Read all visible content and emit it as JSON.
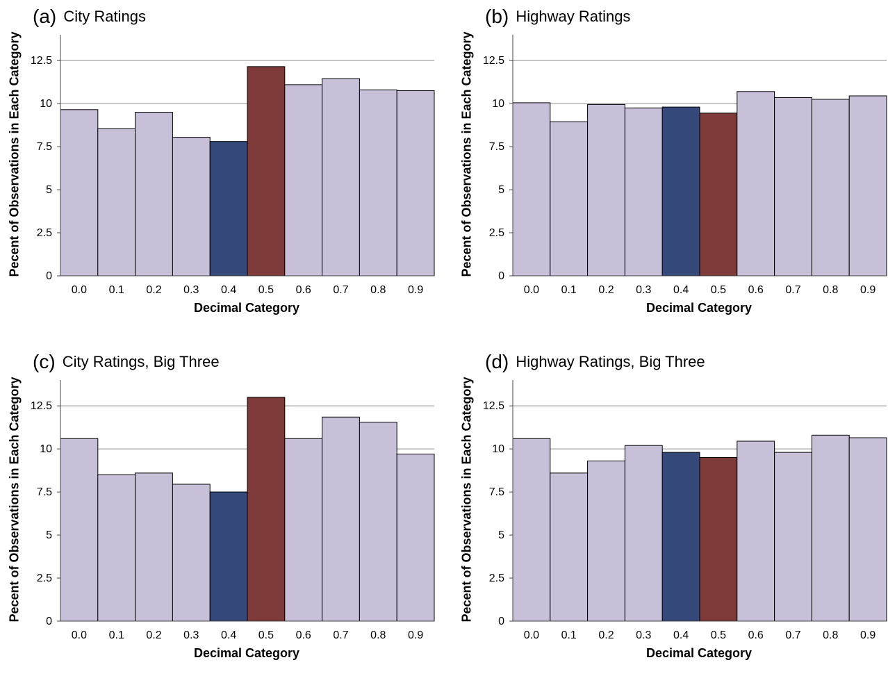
{
  "chart_data": [
    {
      "type": "bar",
      "panel": "(a)",
      "title": "City Ratings",
      "xlabel": "Decimal Category",
      "ylabel": "Pecent of Observations in Each Category",
      "categories": [
        "0.0",
        "0.1",
        "0.2",
        "0.3",
        "0.4",
        "0.5",
        "0.6",
        "0.7",
        "0.8",
        "0.9"
      ],
      "values": [
        9.65,
        8.55,
        9.5,
        8.05,
        7.8,
        12.15,
        11.1,
        11.45,
        10.8,
        10.75
      ],
      "ylim": [
        0,
        14
      ],
      "yticks": [
        "0",
        "2.5",
        "5",
        "7.5",
        "10",
        "12.5"
      ],
      "ytick_values": [
        0,
        2.5,
        5,
        7.5,
        10,
        12.5
      ],
      "grid": true
    },
    {
      "type": "bar",
      "panel": "(b)",
      "title": "Highway Ratings",
      "xlabel": "Decimal Category",
      "ylabel": "Pecent of Observations in Each Category",
      "categories": [
        "0.0",
        "0.1",
        "0.2",
        "0.3",
        "0.4",
        "0.5",
        "0.6",
        "0.7",
        "0.8",
        "0.9"
      ],
      "values": [
        10.05,
        8.95,
        9.95,
        9.75,
        9.8,
        9.45,
        10.7,
        10.35,
        10.25,
        10.45
      ],
      "ylim": [
        0,
        14
      ],
      "yticks": [
        "0",
        "2.5",
        "5",
        "7.5",
        "10",
        "12.5"
      ],
      "ytick_values": [
        0,
        2.5,
        5,
        7.5,
        10,
        12.5
      ],
      "grid": true
    },
    {
      "type": "bar",
      "panel": "(c)",
      "title": "City Ratings, Big Three",
      "xlabel": "Decimal Category",
      "ylabel": "Pecent of Observations in Each Category",
      "categories": [
        "0.0",
        "0.1",
        "0.2",
        "0.3",
        "0.4",
        "0.5",
        "0.6",
        "0.7",
        "0.8",
        "0.9"
      ],
      "values": [
        10.6,
        8.5,
        8.6,
        7.95,
        7.5,
        13.0,
        10.6,
        11.85,
        11.55,
        9.7
      ],
      "ylim": [
        0,
        14
      ],
      "yticks": [
        "0",
        "2.5",
        "5",
        "7.5",
        "10",
        "12.5"
      ],
      "ytick_values": [
        0,
        2.5,
        5,
        7.5,
        10,
        12.5
      ],
      "grid": true
    },
    {
      "type": "bar",
      "panel": "(d)",
      "title": "Highway Ratings, Big Three",
      "xlabel": "Decimal Category",
      "ylabel": "Pecent of Observations in Each Category",
      "categories": [
        "0.0",
        "0.1",
        "0.2",
        "0.3",
        "0.4",
        "0.5",
        "0.6",
        "0.7",
        "0.8",
        "0.9"
      ],
      "values": [
        10.6,
        8.6,
        9.3,
        10.2,
        9.8,
        9.5,
        10.45,
        9.8,
        10.8,
        10.65
      ],
      "ylim": [
        0,
        14
      ],
      "yticks": [
        "0",
        "2.5",
        "5",
        "7.5",
        "10",
        "12.5"
      ],
      "ytick_values": [
        0,
        2.5,
        5,
        7.5,
        10,
        12.5
      ],
      "grid": true
    }
  ],
  "colors": {
    "default_bar": "#c8bfd9",
    "highlight_0_4": "#344879",
    "highlight_0_5": "#7d3a39",
    "gridline": "#8c8c8c",
    "axis": "#444444"
  }
}
